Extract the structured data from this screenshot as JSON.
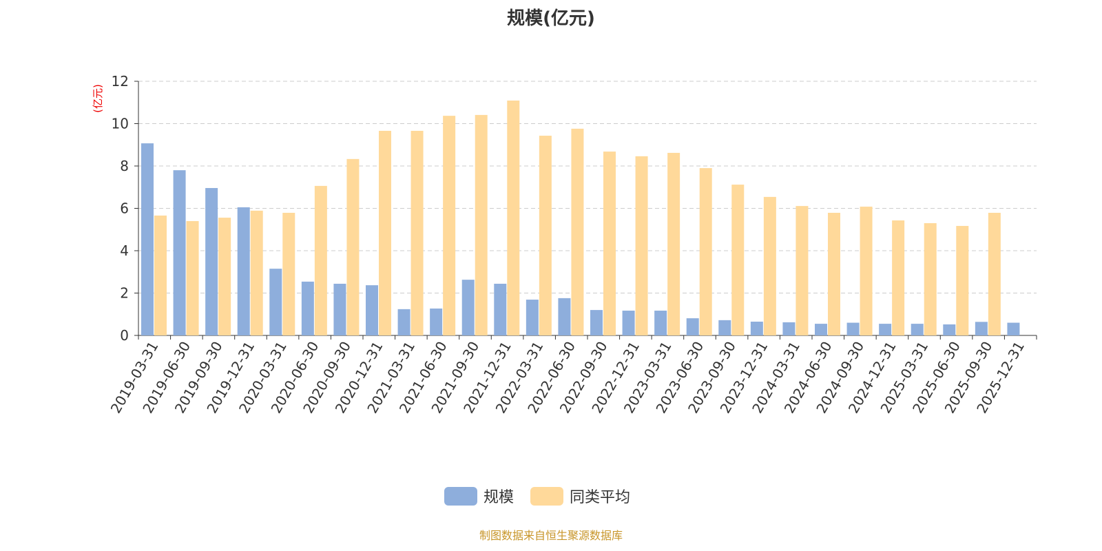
{
  "chart_data": {
    "type": "bar",
    "title": "规模(亿元)",
    "ylabel": "(亿元)",
    "xlabel": "",
    "ylim": [
      0,
      12
    ],
    "yticks": [
      0,
      2,
      4,
      6,
      8,
      10,
      12
    ],
    "grid": true,
    "legend_position": "bottom",
    "categories": [
      "2019-03-31",
      "2019-06-30",
      "2019-09-30",
      "2019-12-31",
      "2020-03-31",
      "2020-06-30",
      "2020-09-30",
      "2020-12-31",
      "2021-03-31",
      "2021-06-30",
      "2021-09-30",
      "2021-12-31",
      "2022-03-31",
      "2022-06-30",
      "2022-09-30",
      "2022-12-31",
      "2023-03-31",
      "2023-06-30",
      "2023-09-30",
      "2023-12-31",
      "2024-03-31",
      "2024-06-30",
      "2024-09-30",
      "2024-12-31",
      "2025-03-31",
      "2025-06-30",
      "2025-09-30",
      "2025-12-31"
    ],
    "series": [
      {
        "name": "规模",
        "color": "#8eaedc",
        "values": [
          9.07,
          7.8,
          6.96,
          6.05,
          3.15,
          2.54,
          2.44,
          2.37,
          1.24,
          1.27,
          2.63,
          2.44,
          1.69,
          1.76,
          1.2,
          1.17,
          1.17,
          0.81,
          0.72,
          0.65,
          0.62,
          0.55,
          0.6,
          0.55,
          0.55,
          0.52,
          0.64,
          0.6
        ]
      },
      {
        "name": "同类平均",
        "color": "#ffd99a",
        "values": [
          5.66,
          5.4,
          5.56,
          5.89,
          5.79,
          7.06,
          8.33,
          9.66,
          9.66,
          10.37,
          10.41,
          11.09,
          9.43,
          9.76,
          8.68,
          8.46,
          8.62,
          7.9,
          7.12,
          6.54,
          6.11,
          5.79,
          6.08,
          5.43,
          5.3,
          5.17,
          5.79,
          null
        ]
      }
    ]
  },
  "footer": "制图数据来自恒生聚源数据库"
}
